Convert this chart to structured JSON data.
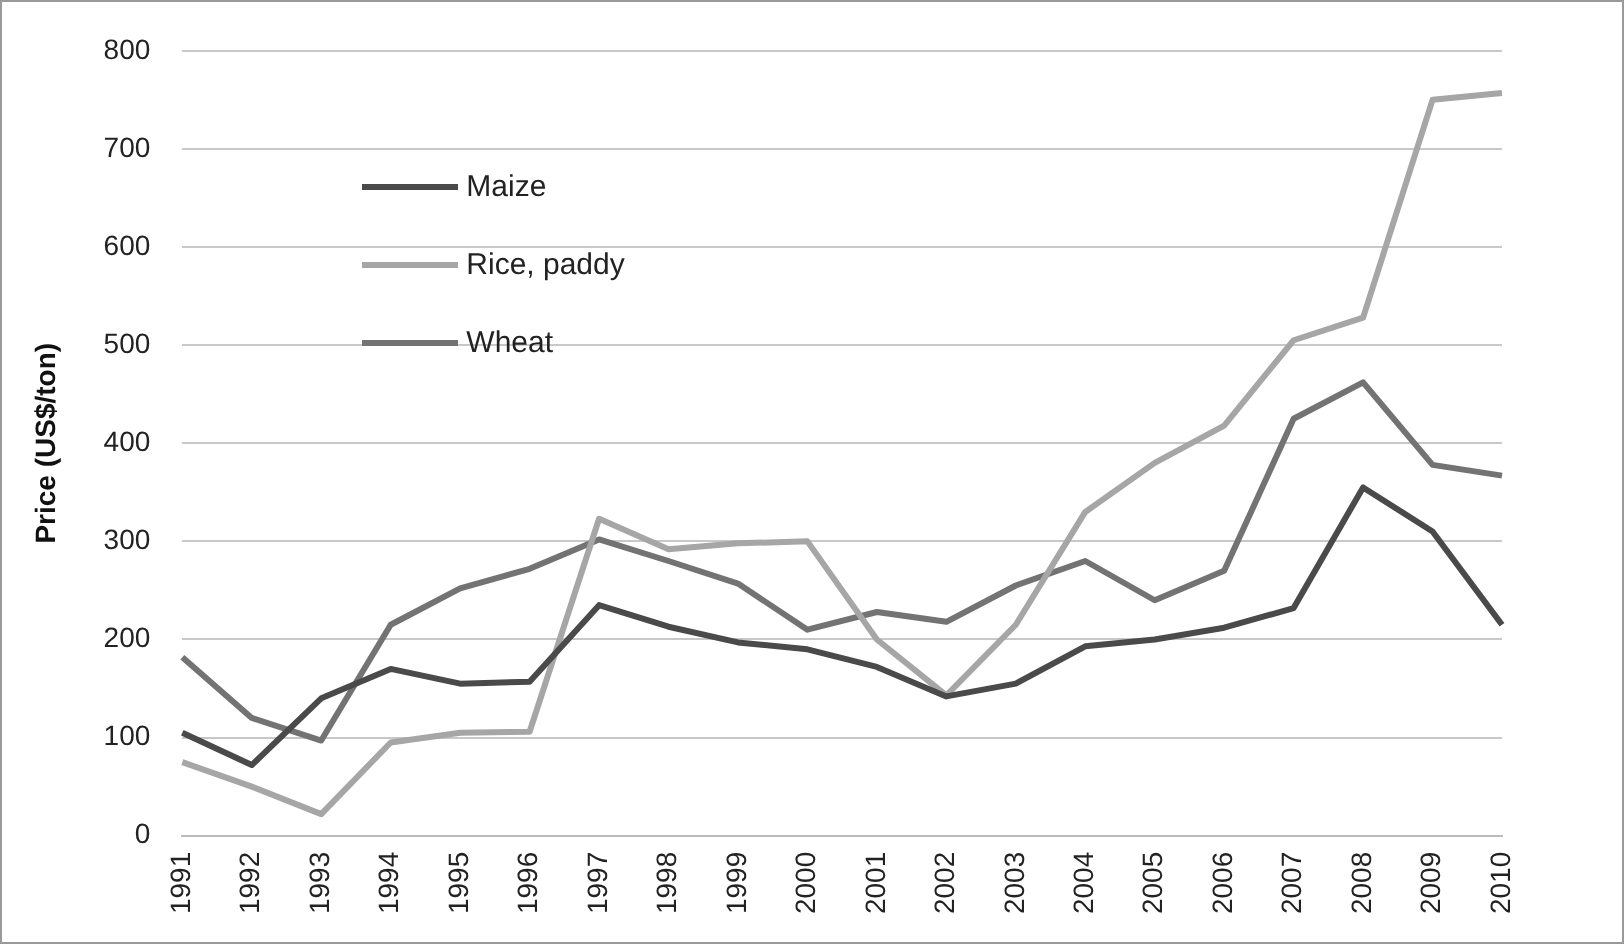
{
  "chart_data": {
    "type": "line",
    "ylabel": "Price (US$/ton)",
    "categories": [
      "1991",
      "1992",
      "1993",
      "1994",
      "1995",
      "1996",
      "1997",
      "1998",
      "1999",
      "2000",
      "2001",
      "2002",
      "2003",
      "2004",
      "2005",
      "2006",
      "2007",
      "2008",
      "2009",
      "2010"
    ],
    "series": [
      {
        "name": "Maize",
        "color": "#4a4a4a",
        "values": [
          105,
          72,
          140,
          170,
          155,
          157,
          235,
          213,
          197,
          190,
          172,
          142,
          155,
          193,
          200,
          212,
          232,
          355,
          310,
          215
        ]
      },
      {
        "name": "Rice, paddy",
        "color": "#a6a6a6",
        "values": [
          75,
          50,
          22,
          95,
          105,
          106,
          323,
          292,
          298,
          300,
          200,
          143,
          215,
          330,
          380,
          418,
          505,
          528,
          750,
          757
        ]
      },
      {
        "name": "Wheat",
        "color": "#737373",
        "values": [
          182,
          120,
          97,
          215,
          252,
          272,
          302,
          280,
          257,
          210,
          228,
          218,
          255,
          280,
          240,
          270,
          425,
          462,
          378,
          367
        ]
      }
    ],
    "ylim": [
      0,
      800
    ],
    "yticks": [
      0,
      100,
      200,
      300,
      400,
      500,
      600,
      700,
      800
    ],
    "grid": "y",
    "legend": "top left",
    "marker": "none",
    "line_style": "solid"
  }
}
